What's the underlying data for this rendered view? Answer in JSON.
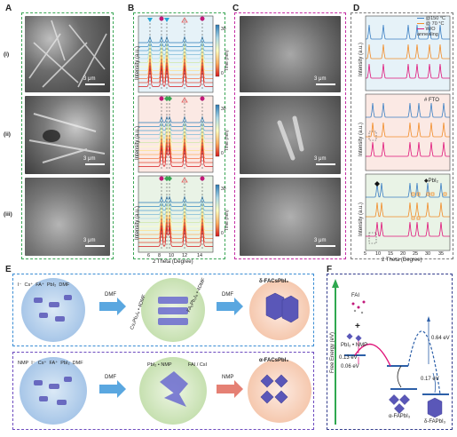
{
  "panels": {
    "A": "A",
    "B": "B",
    "C": "C",
    "D": "D",
    "E": "E",
    "F": "F"
  },
  "rows": [
    "(i)",
    "(ii)",
    "(iii)"
  ],
  "scale": "3 μm",
  "B": {
    "ylabel": "Intensity (a.u.)",
    "xlabel": "2 Theta (Degree)",
    "xticks": [
      "6",
      "8",
      "10",
      "12",
      "14"
    ],
    "colorbar_label": "Time (min)",
    "colorbar_ticks": [
      "0",
      "15",
      "30"
    ]
  },
  "D": {
    "ylabel": "Intensity (a.u.)",
    "xlabel": "2 Theta (Degree)",
    "xticks": [
      "5",
      "10",
      "15",
      "20",
      "25",
      "30",
      "35"
    ],
    "legend": [
      "@150 °C",
      "@ 70 °C",
      "W/O annealing"
    ],
    "legend_colors": [
      "#3b7fc4",
      "#f28c28",
      "#e0157a"
    ],
    "fto_label": "# FTO",
    "pbi2_label": "◆PbI₂"
  },
  "E": {
    "top": {
      "reagents": [
        "I⁻",
        "Cs⁺",
        "FA⁺",
        "PbI₂",
        "DMF"
      ],
      "arrow1": "DMF",
      "intermediate1": "Cs₂Pb₃I₈ • 4DMF",
      "intermediate2": "FA₂Pb₃I₈ • 4DMF",
      "arrow2": "DMF",
      "product": "δ-FACsPbI₃"
    },
    "bottom": {
      "reagents": [
        "NMP",
        "I⁻",
        "Cs⁺",
        "FA⁺",
        "PbI₂",
        "DMF"
      ],
      "arrow1": "DMF",
      "intermediate1": "PbI₂ • NMP",
      "intermediate2": "FAI / CsI",
      "arrow2": "NMP",
      "product": "α-FACsPbI₃"
    }
  },
  "F": {
    "ylabel": "Free Energy (eV)",
    "reactant_top": "FAI",
    "reactant_bottom": "PbI₂ • NMP",
    "e1": "0.13 eV",
    "e2": "0.06 eV",
    "e3": "0.64 eV",
    "e4": "0.17 eV",
    "alpha": "α-FAPbI₃",
    "delta": "δ-FAPbI₃"
  }
}
